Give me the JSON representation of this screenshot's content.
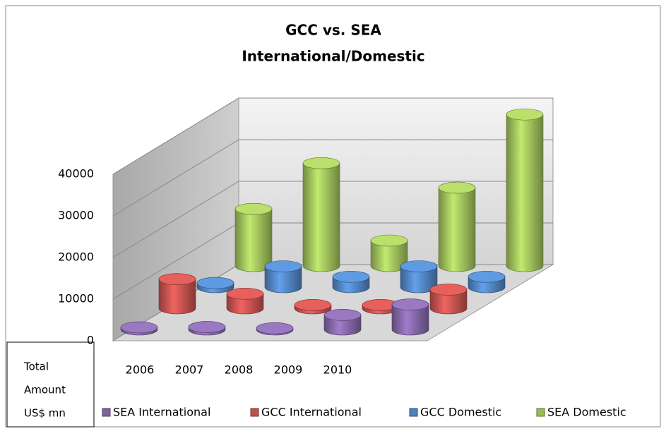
{
  "chart_data": {
    "type": "bar3d",
    "title": [
      "GCC vs. SEA",
      "International/Domestic"
    ],
    "y_label": [
      "Total",
      "Amount",
      "US$ mn"
    ],
    "categories": [
      "2006",
      "2007",
      "2008",
      "2009",
      "2010"
    ],
    "series": [
      {
        "name": "SEA International",
        "color": "#8064a2",
        "values": [
          500,
          600,
          300,
          3500,
          6000
        ]
      },
      {
        "name": "GCC International",
        "color": "#c0504d",
        "values": [
          7000,
          3500,
          800,
          800,
          4500
        ]
      },
      {
        "name": "GCC Domestic",
        "color": "#4f81bd",
        "values": [
          1000,
          5000,
          2500,
          5000,
          2500
        ]
      },
      {
        "name": "SEA Domestic",
        "color": "#9bbb59",
        "values": [
          13700,
          24700,
          6100,
          18800,
          36400
        ]
      }
    ],
    "ylim": [
      0,
      40000
    ],
    "yticks": [
      0,
      10000,
      20000,
      30000,
      40000
    ],
    "grid": true
  }
}
